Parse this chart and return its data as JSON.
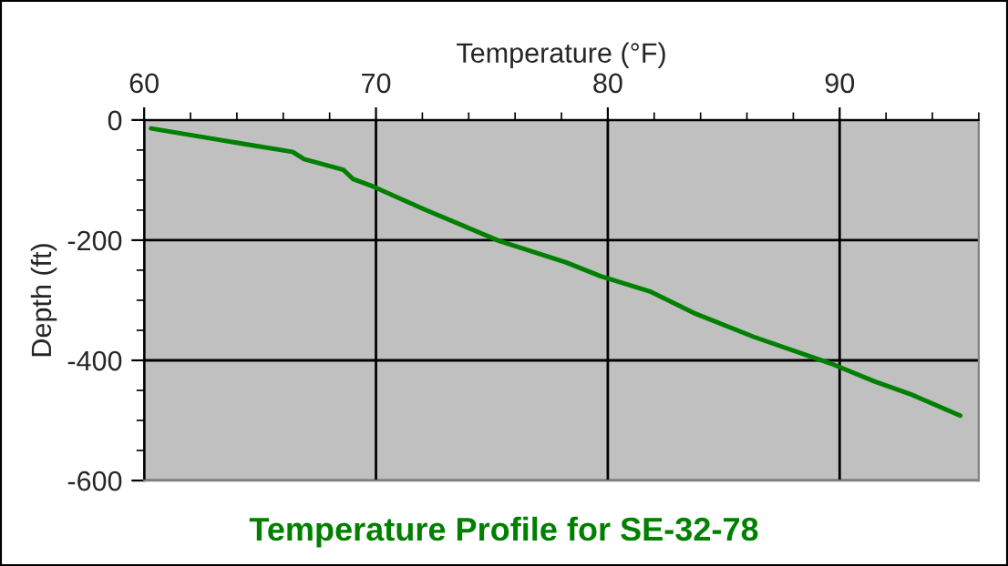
{
  "chart_data": {
    "type": "line",
    "title": "Temperature Profile for SE-32-78",
    "xlabel": "Temperature (°F)",
    "ylabel": "Depth (ft)",
    "x": [
      60.3,
      64.8,
      66.4,
      66.9,
      68.6,
      69.0,
      69.9,
      72.1,
      75.3,
      78.2,
      79.7,
      81.8,
      83.7,
      86.3,
      89.6,
      91.5,
      93.1,
      95.2
    ],
    "series": [
      {
        "color": "#008000",
        "values": [
          -14,
          -43,
          -53,
          -65,
          -83,
          -98,
          -111,
          -149,
          -201,
          -237,
          -260,
          -285,
          -321,
          -361,
          -405,
          -435,
          -457,
          -492
        ]
      }
    ],
    "xlim": [
      60,
      96
    ],
    "xticks": [
      60,
      70,
      80,
      90
    ],
    "ylim": [
      -600,
      0
    ],
    "yticks": [
      -600,
      -400,
      -200,
      0
    ],
    "grid": true
  }
}
